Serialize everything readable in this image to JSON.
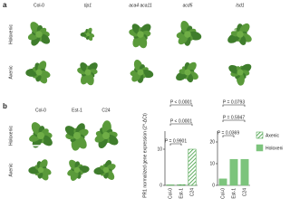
{
  "panel_a": {
    "label": "a",
    "columns": [
      "Col-0",
      "tip1",
      "aca4 aca11",
      "acd5",
      "lsd1"
    ],
    "rows": [
      "Holoxenic",
      "Axenic"
    ]
  },
  "panel_b": {
    "label": "b",
    "columns": [
      "Col-0",
      "Est-1",
      "C24"
    ],
    "rows": [
      "Holoxenic",
      "Axenic"
    ]
  },
  "chart_data": [
    {
      "type": "bar",
      "ylabel": "PR1 normalized gene expression (2^-ΔCt)",
      "hatch": true,
      "categories": [
        "Col-0",
        "Est-1",
        "C24"
      ],
      "series": [
        {
          "name": "Axenic",
          "color": "#3a9a3a",
          "values": [
            0.1,
            0.2,
            10
          ]
        }
      ],
      "ylim": [
        0,
        15
      ],
      "yticks": [
        0,
        10
      ],
      "annotations": [
        "P = 0.9901",
        "P < 0.0001",
        "P < 0.0001"
      ]
    },
    {
      "type": "bar",
      "hatch": false,
      "categories": [
        "Col-0",
        "Est-1",
        "C24"
      ],
      "series": [
        {
          "name": "Holoxenic",
          "color": "#7cc47c",
          "values": [
            3,
            12,
            12
          ]
        }
      ],
      "ylim": [
        0,
        25
      ],
      "yticks": [
        0,
        10,
        20
      ],
      "annotations": [
        "P = 0.0369",
        "P = 0.5947",
        "P = 0.0793"
      ]
    }
  ]
}
